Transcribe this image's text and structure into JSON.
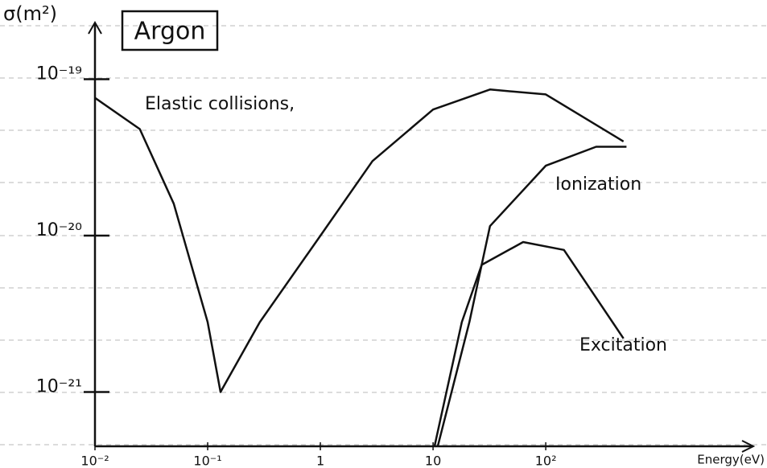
{
  "chart_data": {
    "type": "line",
    "title": "Argon",
    "y_label": "σ(m²)",
    "x_label": "Energy(eV)",
    "log_x": true,
    "log_y": true,
    "xlim": [
      0.01,
      5000
    ],
    "ylim": [
      4.5e-22,
      2e-19
    ],
    "xticks": [
      {
        "value": 0.01,
        "label": "10⁻²"
      },
      {
        "value": 0.1,
        "label": "10⁻¹"
      },
      {
        "value": 1,
        "label": "1"
      },
      {
        "value": 10,
        "label": "10"
      },
      {
        "value": 100,
        "label": "10²"
      }
    ],
    "yticks": [
      {
        "value": 1e-19,
        "label": "10⁻¹⁹"
      },
      {
        "value": 1e-20,
        "label": "10⁻²⁰"
      },
      {
        "value": 1e-21,
        "label": "10⁻²¹"
      }
    ],
    "series": [
      {
        "name": "Elastic collisions,",
        "color": "#111111",
        "x": [
          0.01,
          0.025,
          0.05,
          0.1,
          0.13,
          0.29,
          1,
          2.9,
          10,
          32,
          100,
          490
        ],
        "values": [
          7.6e-20,
          4.8e-20,
          1.6e-20,
          2.8e-21,
          1e-21,
          2.8e-21,
          1e-20,
          3e-20,
          6.4e-20,
          8.6e-20,
          8e-20,
          4e-20
        ]
      },
      {
        "name": "Ionization",
        "color": "#111111",
        "x": [
          11,
          21,
          32,
          100,
          280,
          520
        ],
        "values": [
          4.5e-22,
          2.8e-21,
          1.15e-20,
          2.8e-20,
          3.7e-20,
          3.7e-20
        ]
      },
      {
        "name": "Excitation",
        "color": "#111111",
        "x": [
          10.3,
          18,
          27,
          63,
          145,
          490
        ],
        "values": [
          4.5e-22,
          2.8e-21,
          6.5e-21,
          9.1e-21,
          8.1e-21,
          2.2e-21
        ]
      }
    ]
  }
}
